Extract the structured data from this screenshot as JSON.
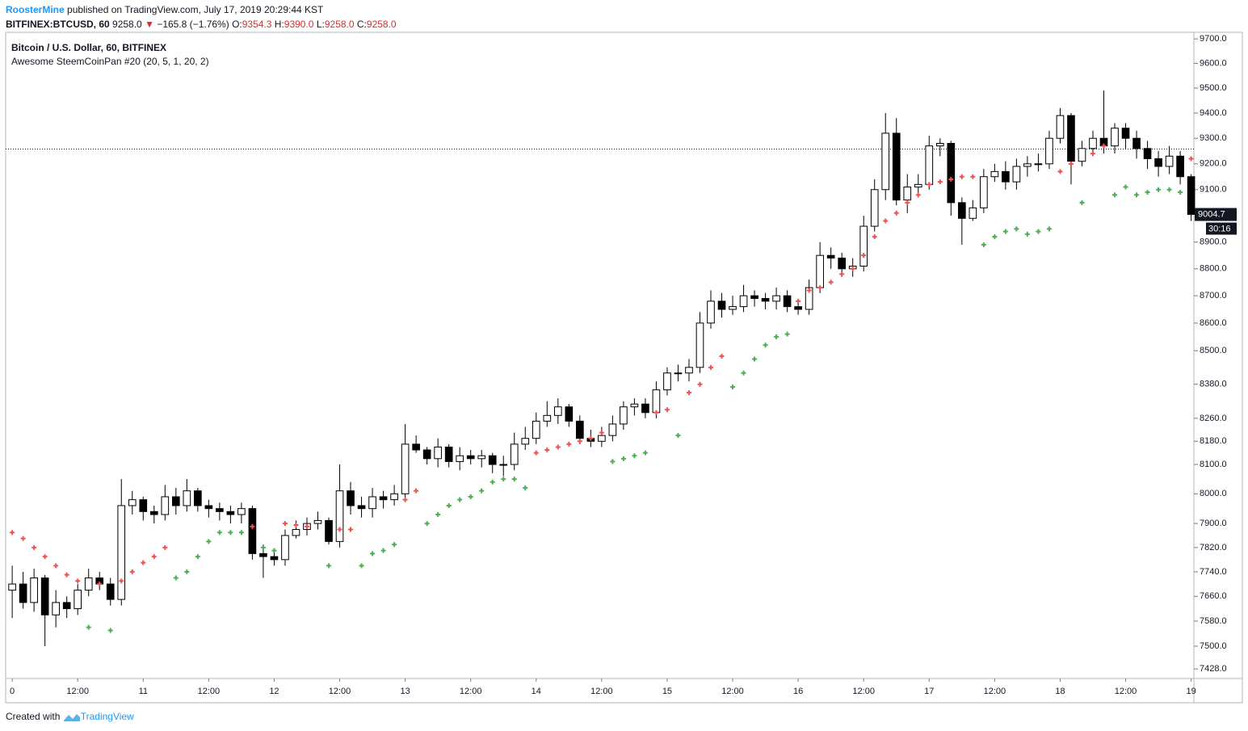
{
  "header": {
    "author": "RoosterMine",
    "published": "published on TradingView.com, July 17, 2019 20:29:44 KST",
    "symbol": "BITFINEX:BTCUSD, 60",
    "price": "9258.0",
    "arrow": "▼",
    "change": "−165.8 (−1.76%)",
    "ohlc": [
      {
        "label": "O:",
        "value": "9354.3"
      },
      {
        "label": "H:",
        "value": "9390.0"
      },
      {
        "label": "L:",
        "value": "9258.0"
      },
      {
        "label": "C:",
        "value": "9258.0"
      }
    ]
  },
  "footer": {
    "created": "Created with",
    "brand": "TradingView"
  },
  "chart_data": {
    "type": "candlestick",
    "title": "Bitcoin / U.S. Dollar, 60, BITFINEX",
    "subtitle": "Awesome SteemCoinPan #20 (20, 5, 1, 20, 2)",
    "log_scale": true,
    "up_color": "#ffffff",
    "down_color": "#000000",
    "wick_color": "#000000",
    "xlim": [
      -1.2,
      216.5
    ],
    "ylim": [
      7398,
      9727
    ],
    "xticks": [
      0,
      {
        "value": 12,
        "label": "12:00"
      },
      {
        "value": 24,
        "label": "11"
      },
      {
        "value": 36,
        "label": "12:00"
      },
      {
        "value": 48,
        "label": "12"
      },
      {
        "value": 60,
        "label": "12:00"
      },
      {
        "value": 72,
        "label": "13"
      },
      {
        "value": 84,
        "label": "12:00"
      },
      {
        "value": 96,
        "label": "14"
      },
      {
        "value": 108,
        "label": "12:00"
      },
      {
        "value": 120,
        "label": "15"
      },
      {
        "value": 132,
        "label": "12:00"
      },
      {
        "value": 144,
        "label": "16"
      },
      {
        "value": 156,
        "label": "12:00"
      },
      {
        "value": 168,
        "label": "17"
      },
      {
        "value": 180,
        "label": "12:00"
      },
      {
        "value": 192,
        "label": "18"
      },
      {
        "value": 204,
        "label": "12:00"
      },
      {
        "value": 216,
        "label": "19"
      }
    ],
    "yticks": [
      {
        "value": 7428,
        "label": "7428.0"
      },
      {
        "value": 7500,
        "label": "7500.0"
      },
      {
        "value": 7580,
        "label": "7580.0"
      },
      {
        "value": 7660,
        "label": "7660.0"
      },
      {
        "value": 7740,
        "label": "7740.0"
      },
      {
        "value": 7820,
        "label": "7820.0"
      },
      {
        "value": 7900,
        "label": "7900.0"
      },
      {
        "value": 8000,
        "label": "8000.0"
      },
      {
        "value": 8100,
        "label": "8100.0"
      },
      {
        "value": 8180,
        "label": "8180.0"
      },
      {
        "value": 8260,
        "label": "8260.0"
      },
      {
        "value": 8380,
        "label": "8380.0"
      },
      {
        "value": 8500,
        "label": "8500.0"
      },
      {
        "value": 8600,
        "label": "8600.0"
      },
      {
        "value": 8700,
        "label": "8700.0"
      },
      {
        "value": 8800,
        "label": "8800.0"
      },
      {
        "value": 8900,
        "label": "8900.0"
      },
      {
        "value": 9100,
        "label": "9100.0"
      },
      {
        "value": 9200,
        "label": "9200.0"
      },
      {
        "value": 9300,
        "label": "9300.0"
      },
      {
        "value": 9400,
        "label": "9400.0"
      },
      {
        "value": 9500,
        "label": "9500.0"
      },
      {
        "value": 9600,
        "label": "9600.0"
      },
      {
        "value": 9700,
        "label": "9700.0"
      }
    ],
    "price_line": 9258,
    "last_price": 9004.7,
    "countdown": "30:16",
    "x": [
      0,
      2,
      4,
      6,
      8,
      10,
      12,
      14,
      16,
      18,
      20,
      22,
      24,
      26,
      28,
      30,
      32,
      34,
      36,
      38,
      40,
      42,
      44,
      46,
      48,
      50,
      52,
      54,
      56,
      58,
      60,
      62,
      64,
      66,
      68,
      70,
      72,
      74,
      76,
      78,
      80,
      82,
      84,
      86,
      88,
      90,
      92,
      94,
      96,
      98,
      100,
      102,
      104,
      106,
      108,
      110,
      112,
      114,
      116,
      118,
      120,
      122,
      124,
      126,
      128,
      130,
      132,
      134,
      136,
      138,
      140,
      142,
      144,
      146,
      148,
      150,
      152,
      154,
      156,
      158,
      160,
      162,
      164,
      166,
      168,
      170,
      172,
      174,
      176,
      178,
      180,
      182,
      184,
      186,
      188,
      190,
      192,
      194,
      196,
      198,
      200,
      202,
      204,
      206,
      208,
      210,
      212,
      214,
      216
    ],
    "open": [
      7680,
      7700,
      7640,
      7720,
      7600,
      7640,
      7620,
      7680,
      7720,
      7700,
      7650,
      7960,
      7980,
      7940,
      7930,
      7990,
      7960,
      8010,
      7960,
      7950,
      7940,
      7930,
      7950,
      7800,
      7790,
      7780,
      7860,
      7880,
      7900,
      7910,
      7840,
      8010,
      7960,
      7950,
      7990,
      7980,
      8000,
      8170,
      8150,
      8120,
      8160,
      8110,
      8130,
      8120,
      8130,
      8100,
      8100,
      8170,
      8190,
      8250,
      8270,
      8300,
      8250,
      8190,
      8180,
      8200,
      8240,
      8300,
      8310,
      8280,
      8360,
      8420,
      8420,
      8440,
      8600,
      8680,
      8650,
      8660,
      8700,
      8690,
      8680,
      8700,
      8660,
      8650,
      8730,
      8850,
      8840,
      8800,
      8810,
      8960,
      9100,
      9320,
      9060,
      9110,
      9120,
      9270,
      9280,
      9050,
      8990,
      9030,
      9150,
      9170,
      9130,
      9190,
      9200,
      9200,
      9300,
      9390,
      9210,
      9260,
      9300,
      9270,
      9340,
      9300,
      9260,
      9220,
      9190,
      9230,
      9150
    ],
    "high": [
      7760,
      7740,
      7750,
      7730,
      7680,
      7660,
      7700,
      7750,
      7740,
      7720,
      8050,
      8010,
      7990,
      7960,
      8030,
      8020,
      8050,
      8020,
      7980,
      7970,
      7960,
      7970,
      7960,
      7830,
      7810,
      7880,
      7910,
      7920,
      7940,
      7920,
      8100,
      8040,
      7990,
      8020,
      8010,
      8030,
      8240,
      8200,
      8160,
      8190,
      8170,
      8160,
      8150,
      8150,
      8140,
      8130,
      8210,
      8230,
      8280,
      8320,
      8330,
      8310,
      8270,
      8220,
      8230,
      8270,
      8320,
      8330,
      8330,
      8390,
      8440,
      8450,
      8470,
      8640,
      8720,
      8710,
      8700,
      8740,
      8720,
      8710,
      8730,
      8720,
      8680,
      8760,
      8900,
      8880,
      8860,
      8840,
      9000,
      9140,
      9400,
      9380,
      9160,
      9160,
      9310,
      9300,
      9290,
      9070,
      9060,
      9180,
      9200,
      9210,
      9220,
      9230,
      9240,
      9330,
      9420,
      9400,
      9290,
      9330,
      9490,
      9360,
      9360,
      9330,
      9290,
      9250,
      9270,
      9250,
      9160
    ],
    "low": [
      7590,
      7620,
      7610,
      7500,
      7560,
      7590,
      7600,
      7660,
      7680,
      7630,
      7630,
      7930,
      7910,
      7900,
      7910,
      7930,
      7940,
      7940,
      7920,
      7910,
      7900,
      7900,
      7780,
      7720,
      7760,
      7760,
      7850,
      7860,
      7880,
      7830,
      7820,
      7930,
      7920,
      7920,
      7950,
      7960,
      7980,
      8140,
      8100,
      8090,
      8090,
      8080,
      8100,
      8090,
      8070,
      8060,
      8080,
      8150,
      8170,
      8230,
      8240,
      8230,
      8170,
      8160,
      8160,
      8180,
      8220,
      8270,
      8260,
      8260,
      8340,
      8390,
      8390,
      8420,
      8580,
      8620,
      8630,
      8640,
      8660,
      8650,
      8650,
      8640,
      8630,
      8630,
      8710,
      8800,
      8770,
      8770,
      8790,
      8940,
      9060,
      9040,
      9010,
      9070,
      9100,
      9230,
      9000,
      8890,
      8980,
      9010,
      9130,
      9100,
      9100,
      9150,
      9170,
      9180,
      9280,
      9120,
      9190,
      9230,
      9240,
      9240,
      9260,
      9220,
      9180,
      9150,
      9160,
      9120,
      8980
    ],
    "close": [
      7700,
      7640,
      7720,
      7600,
      7640,
      7620,
      7680,
      7720,
      7700,
      7650,
      7960,
      7980,
      7940,
      7930,
      7990,
      7960,
      8010,
      7960,
      7950,
      7940,
      7930,
      7950,
      7800,
      7790,
      7780,
      7860,
      7880,
      7900,
      7910,
      7840,
      8010,
      7960,
      7950,
      7990,
      7980,
      8000,
      8170,
      8150,
      8120,
      8160,
      8110,
      8130,
      8120,
      8130,
      8100,
      8100,
      8170,
      8190,
      8250,
      8270,
      8300,
      8250,
      8190,
      8180,
      8200,
      8240,
      8300,
      8310,
      8280,
      8360,
      8420,
      8420,
      8440,
      8600,
      8680,
      8650,
      8660,
      8700,
      8690,
      8680,
      8700,
      8660,
      8650,
      8730,
      8850,
      8840,
      8800,
      8810,
      8960,
      9100,
      9320,
      9060,
      9110,
      9120,
      9270,
      9280,
      9050,
      8990,
      9030,
      9150,
      9170,
      9130,
      9190,
      9200,
      9200,
      9300,
      9390,
      9210,
      9260,
      9300,
      9270,
      9340,
      9300,
      9260,
      9220,
      9190,
      9230,
      9150,
      9005
    ],
    "series": [
      {
        "color": "#ef5350",
        "values": [
          7870,
          7850,
          7820,
          7790,
          7760,
          7730,
          7710,
          null,
          7700,
          null,
          7710,
          7740,
          7770,
          7790,
          7820,
          null,
          null,
          null,
          null,
          null,
          null,
          null,
          7890,
          null,
          null,
          7900,
          7895,
          7890,
          null,
          null,
          7880,
          7880,
          null,
          null,
          null,
          null,
          7980,
          8010,
          null,
          null,
          null,
          null,
          null,
          null,
          null,
          null,
          null,
          null,
          8140,
          8150,
          8160,
          8170,
          8180,
          8190,
          8210,
          null,
          null,
          null,
          null,
          8280,
          8290,
          null,
          8350,
          8380,
          8440,
          8480,
          null,
          null,
          null,
          null,
          null,
          null,
          8680,
          8720,
          8730,
          8750,
          8780,
          8800,
          8850,
          8920,
          8980,
          9010,
          9050,
          9080,
          9120,
          9130,
          9140,
          9150,
          9150,
          null,
          null,
          null,
          null,
          null,
          null,
          null,
          9170,
          9200,
          null,
          9240,
          9270,
          null,
          null,
          null,
          null,
          null,
          null,
          null,
          9220
        ]
      },
      {
        "color": "#4caf50",
        "values": [
          null,
          null,
          null,
          null,
          null,
          null,
          null,
          7560,
          null,
          7550,
          null,
          null,
          null,
          null,
          null,
          7720,
          7740,
          7790,
          7840,
          7870,
          7870,
          7870,
          null,
          7820,
          7810,
          null,
          null,
          null,
          null,
          7760,
          null,
          null,
          7760,
          7800,
          7810,
          7830,
          null,
          null,
          7900,
          7930,
          7960,
          7980,
          7990,
          8010,
          8040,
          8050,
          8050,
          8020,
          null,
          null,
          null,
          null,
          null,
          null,
          null,
          8110,
          8120,
          8130,
          8140,
          null,
          null,
          8200,
          null,
          null,
          null,
          null,
          8370,
          8420,
          8470,
          8520,
          8550,
          8560,
          null,
          null,
          null,
          null,
          null,
          null,
          null,
          null,
          null,
          null,
          null,
          null,
          null,
          null,
          null,
          null,
          null,
          8890,
          8920,
          8940,
          8950,
          8930,
          8940,
          8950,
          null,
          null,
          9050,
          null,
          null,
          9080,
          9110,
          9080,
          9090,
          9100,
          9100,
          9090,
          null
        ]
      }
    ]
  }
}
